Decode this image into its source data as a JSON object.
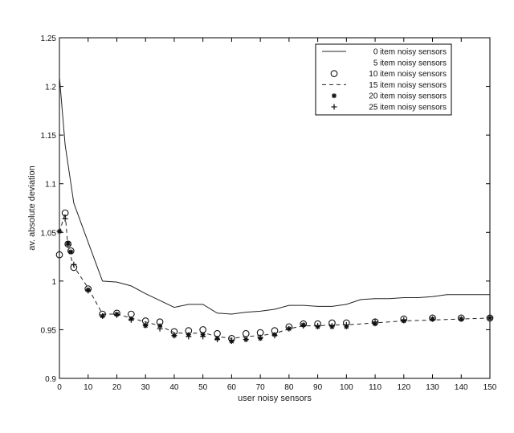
{
  "chart_data": {
    "type": "line",
    "title": "",
    "xlabel": "user noisy sensors",
    "ylabel": "av. absolute deviation",
    "xlim": [
      0,
      150
    ],
    "ylim": [
      0.9,
      1.25
    ],
    "grid": false,
    "legend_position": "top-right",
    "x_ticks": [
      0,
      10,
      20,
      30,
      40,
      50,
      60,
      70,
      80,
      90,
      100,
      110,
      120,
      130,
      140,
      150
    ],
    "y_ticks": [
      0.9,
      0.95,
      1,
      1.05,
      1.1,
      1.15,
      1.2,
      1.25
    ],
    "x_tick_labels": [
      "0",
      "10",
      "20",
      "30",
      "40",
      "50",
      "60",
      "70",
      "80",
      "90",
      "100",
      "110",
      "120",
      "130",
      "140",
      "150"
    ],
    "y_tick_labels": [
      "0.9",
      "0.95",
      "1",
      "1.05",
      "1.1",
      "1.15",
      "1.2",
      "1.25"
    ],
    "series": [
      {
        "name": "0 item noisy sensors",
        "style": "solid",
        "marker": "none",
        "x": [
          0,
          2,
          5,
          10,
          15,
          20,
          25,
          30,
          35,
          40,
          45,
          50,
          55,
          60,
          65,
          70,
          75,
          80,
          85,
          90,
          95,
          100,
          105,
          110,
          115,
          120,
          125,
          130,
          135,
          140,
          145,
          150
        ],
        "y": [
          1.21,
          1.14,
          1.08,
          1.04,
          1.0,
          0.999,
          0.995,
          0.987,
          0.98,
          0.973,
          0.976,
          0.976,
          0.967,
          0.966,
          0.968,
          0.969,
          0.971,
          0.975,
          0.975,
          0.974,
          0.974,
          0.976,
          0.981,
          0.982,
          0.982,
          0.983,
          0.983,
          0.984,
          0.986,
          0.986,
          0.986,
          0.986
        ]
      },
      {
        "name": "5 item noisy sensors",
        "style": "none",
        "marker": "none",
        "x": [],
        "y": []
      },
      {
        "name": "10 item noisy sensors",
        "style": "none",
        "marker": "circle",
        "x": [
          0,
          2,
          3,
          4,
          5,
          10,
          15,
          20,
          25,
          30,
          35,
          40,
          45,
          50,
          55,
          60,
          65,
          70,
          75,
          80,
          85,
          90,
          95,
          100,
          110,
          120,
          130,
          140,
          150
        ],
        "y": [
          1.027,
          1.07,
          1.038,
          1.031,
          1.014,
          0.992,
          0.966,
          0.967,
          0.966,
          0.959,
          0.958,
          0.948,
          0.949,
          0.95,
          0.946,
          0.941,
          0.946,
          0.947,
          0.949,
          0.953,
          0.956,
          0.956,
          0.957,
          0.957,
          0.958,
          0.961,
          0.962,
          0.962,
          0.962
        ]
      },
      {
        "name": "15 item noisy sensors",
        "style": "dashed",
        "marker": "none",
        "x": [
          0,
          2,
          3,
          5,
          10,
          15,
          20,
          25,
          30,
          35,
          40,
          45,
          50,
          55,
          60,
          65,
          70,
          75,
          80,
          85,
          90,
          95,
          100,
          105,
          110,
          120,
          130,
          140,
          150
        ],
        "y": [
          1.05,
          1.07,
          1.034,
          1.015,
          0.993,
          0.966,
          0.966,
          0.962,
          0.958,
          0.954,
          0.947,
          0.946,
          0.947,
          0.943,
          0.941,
          0.943,
          0.944,
          0.946,
          0.951,
          0.954,
          0.954,
          0.955,
          0.955,
          0.956,
          0.957,
          0.959,
          0.96,
          0.961,
          0.962
        ]
      },
      {
        "name": "20 item noisy sensors",
        "style": "none",
        "marker": "star",
        "x": [
          0,
          3,
          4,
          10,
          15,
          20,
          25,
          30,
          35,
          40,
          45,
          50,
          55,
          60,
          65,
          70,
          75,
          80,
          85,
          90,
          95,
          100,
          110,
          120,
          130,
          140,
          150
        ],
        "y": [
          1.051,
          1.039,
          1.03,
          0.991,
          0.964,
          0.966,
          0.961,
          0.954,
          0.954,
          0.944,
          0.945,
          0.945,
          0.941,
          0.938,
          0.94,
          0.941,
          0.945,
          0.951,
          0.955,
          0.953,
          0.953,
          0.953,
          0.956,
          0.959,
          0.961,
          0.961,
          0.962
        ]
      },
      {
        "name": "25 item noisy sensors",
        "style": "none",
        "marker": "plus",
        "x": [
          0,
          2,
          3,
          5,
          10,
          15,
          20,
          25,
          30,
          35,
          40,
          45,
          50,
          55,
          60,
          65,
          70,
          75,
          80,
          85,
          90,
          95,
          100,
          110,
          120,
          130,
          140,
          150
        ],
        "y": [
          1.051,
          1.064,
          1.037,
          1.017,
          0.99,
          0.964,
          0.965,
          0.96,
          0.955,
          0.951,
          0.944,
          0.943,
          0.943,
          0.94,
          0.939,
          0.94,
          0.942,
          0.944,
          0.951,
          0.954,
          0.954,
          0.954,
          0.955,
          0.958,
          0.96,
          0.961,
          0.961,
          0.962
        ]
      }
    ]
  }
}
